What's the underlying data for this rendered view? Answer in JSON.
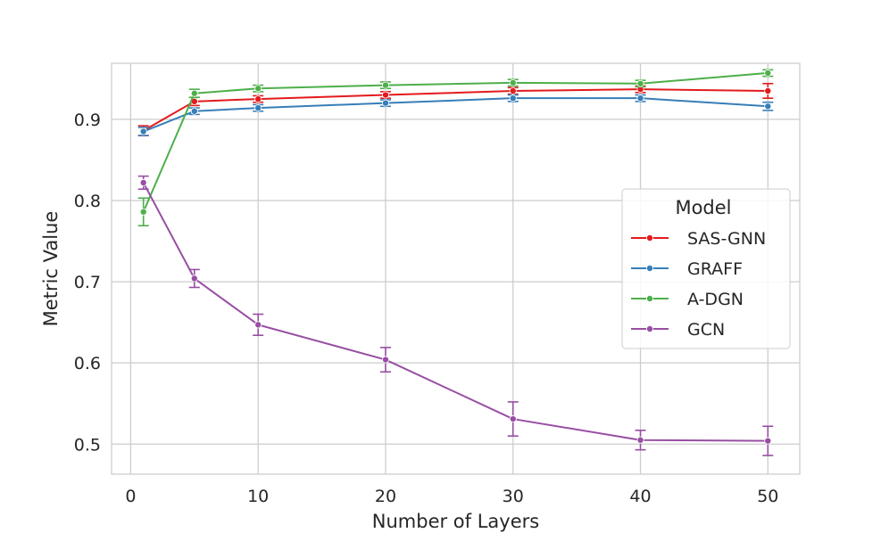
{
  "chart_data": {
    "type": "line",
    "title": "",
    "xlabel": "Number of Layers",
    "ylabel": "Metric Value",
    "x": [
      1,
      5,
      10,
      20,
      30,
      40,
      50
    ],
    "xlim": [
      -1.5,
      52.5
    ],
    "ylim": [
      0.463,
      0.969
    ],
    "xticks": [
      0,
      10,
      20,
      30,
      40,
      50
    ],
    "yticks": [
      0.5,
      0.6,
      0.7,
      0.8,
      0.9
    ],
    "xtick_labels": [
      "0",
      "10",
      "20",
      "30",
      "40",
      "50"
    ],
    "ytick_labels": [
      "0.5",
      "0.6",
      "0.7",
      "0.8",
      "0.9"
    ],
    "grid": true,
    "legend": {
      "title": "Model",
      "position": "center-right"
    },
    "series": [
      {
        "name": "SAS-GNN",
        "color": "#e41a1c",
        "values": [
          0.886,
          0.922,
          0.925,
          0.93,
          0.935,
          0.937,
          0.935
        ],
        "errors": [
          0.006,
          0.005,
          0.004,
          0.004,
          0.004,
          0.004,
          0.009
        ]
      },
      {
        "name": "GRAFF",
        "color": "#377eb8",
        "values": [
          0.885,
          0.91,
          0.914,
          0.92,
          0.926,
          0.926,
          0.916
        ],
        "errors": [
          0.005,
          0.004,
          0.004,
          0.004,
          0.004,
          0.004,
          0.005
        ]
      },
      {
        "name": "A-DGN",
        "color": "#4daf4a",
        "values": [
          0.786,
          0.932,
          0.938,
          0.942,
          0.945,
          0.944,
          0.957
        ],
        "errors": [
          0.017,
          0.005,
          0.004,
          0.004,
          0.004,
          0.004,
          0.004
        ]
      },
      {
        "name": "GCN",
        "color": "#984ea3",
        "values": [
          0.822,
          0.704,
          0.647,
          0.604,
          0.531,
          0.505,
          0.504
        ],
        "errors": [
          0.008,
          0.011,
          0.013,
          0.015,
          0.021,
          0.012,
          0.018
        ]
      }
    ]
  }
}
